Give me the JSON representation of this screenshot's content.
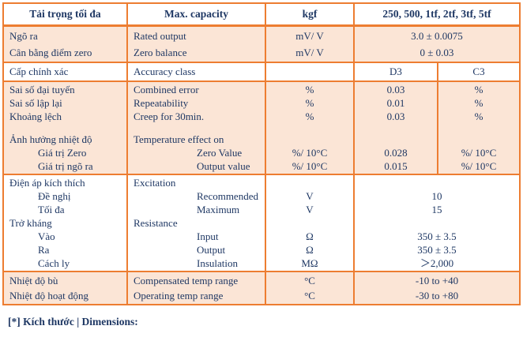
{
  "colors": {
    "border_orange": "#ED7D31",
    "fill_peach": "#FBE5D6",
    "text_navy": "#1F3864"
  },
  "table": {
    "header": {
      "label_vi": "Tải trọng tối đa",
      "label_en": "Max. capacity",
      "unit": "kgf",
      "value": "250, 500, 1tf, 2tf, 3tf, 5tf"
    },
    "sections": [
      {
        "name": "rated-output-zero-balance",
        "bg": "peach",
        "split": false,
        "rows": [
          {
            "c1": "Ngõ ra",
            "c2": "Rated output",
            "unit": "mV/ V",
            "v": "3.0 ± 0.0075"
          },
          {
            "c1": "Cân bằng điểm zero",
            "c2": "Zero balance",
            "unit": "mV/ V",
            "v": "0 ± 0.03"
          }
        ]
      },
      {
        "name": "accuracy-class",
        "bg": "white",
        "split": true,
        "rows": [
          {
            "c1": "Cấp chính xác",
            "c2": "Accuracy class",
            "unit": "",
            "d3": "D3",
            "c3": "C3"
          }
        ]
      },
      {
        "name": "errors-and-temperature-effect",
        "bg": "peach",
        "split": true,
        "rows": [
          {
            "c1": "Sai số đại tuyến",
            "c2": "Combined error",
            "unit": "%",
            "d3": "0.03",
            "c3": "%"
          },
          {
            "c1": "Sai số lập lại",
            "c2": "Repeatability",
            "unit": "%",
            "d3": "0.01",
            "c3": "%"
          },
          {
            "c1": "Khoảng lệch",
            "c2": "Creep for 30min.",
            "unit": "%",
            "d3": "0.03",
            "c3": "%"
          },
          {
            "c1": "",
            "c2": "",
            "unit": "",
            "d3": "",
            "c3": ""
          },
          {
            "c1": "Ảnh hưởng nhiệt độ",
            "c2": "Temperature effect on",
            "unit": "",
            "d3": "",
            "c3": ""
          },
          {
            "c1": "Giá trị Zero",
            "c2": "Zero Value",
            "unit": "%/ 10°C",
            "d3": "0.028",
            "c3": "%/ 10°C",
            "indent": true
          },
          {
            "c1": "Giá trị ngõ ra",
            "c2": "Output value",
            "unit": "%/ 10°C",
            "d3": "0.015",
            "c3": "%/ 10°C",
            "indent": true
          }
        ]
      },
      {
        "name": "excitation-resistance",
        "bg": "white",
        "split": false,
        "rows": [
          {
            "c1": "Điện áp kích thích",
            "c2": "Excitation",
            "unit": "",
            "v": ""
          },
          {
            "c1": "Đề nghị",
            "c2": "Recommended",
            "unit": "V",
            "v": "10",
            "indent": true
          },
          {
            "c1": "Tối đa",
            "c2": "Maximum",
            "unit": "V",
            "v": "15",
            "indent": true
          },
          {
            "c1": "Trở kháng",
            "c2": "Resistance",
            "unit": "",
            "v": ""
          },
          {
            "c1": "Vào",
            "c2": "Input",
            "unit": "Ω",
            "v": "350 ± 3.5",
            "indent": true
          },
          {
            "c1": "Ra",
            "c2": "Output",
            "unit": "Ω",
            "v": "350 ± 3.5",
            "indent": true
          },
          {
            "c1": "Cách ly",
            "c2": "Insulation",
            "unit": "MΩ",
            "v": "＞2,000",
            "indent": true
          }
        ]
      },
      {
        "name": "temperature-ranges",
        "bg": "peach",
        "split": false,
        "rows": [
          {
            "c1": "Nhiệt độ bù",
            "c2": "Compensated temp range",
            "unit": "°C",
            "v": "-10 to +40"
          },
          {
            "c1": "Nhiệt độ hoạt động",
            "c2": "Operating temp range",
            "unit": "°C",
            "v": "-30 to +80"
          }
        ]
      }
    ]
  },
  "caption": "[*] Kích thước | Dimensions:"
}
